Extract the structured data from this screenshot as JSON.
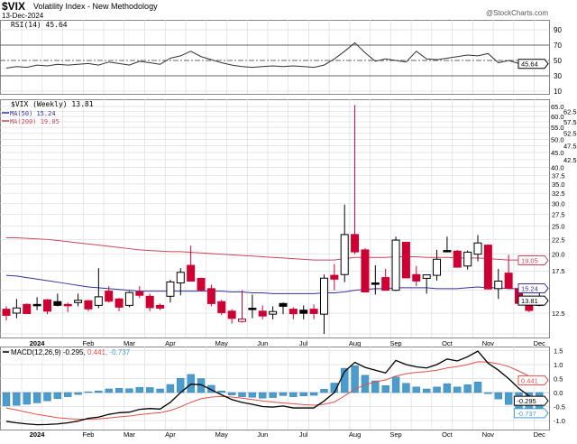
{
  "header": {
    "symbol": "$VIX",
    "name": "Volatility Index - New Methodology",
    "date": "13-Dec-2024",
    "watermark": "@StockCharts.com"
  },
  "colors": {
    "down": "#cc0033",
    "up_fill": "#ffffff",
    "candle_outline": "#000000",
    "ma50": "#33339a",
    "ma200": "#c8475c",
    "rsi": "#333333",
    "macd": "#000000",
    "signal": "#e0504a",
    "histogram": "#4a9ccc",
    "grid": "#dcdcdc"
  },
  "chart_data": [
    {
      "panel": "rsi",
      "type": "line",
      "legend": "RSI(14) 45.64",
      "ylim": [
        10,
        90
      ],
      "ticks": [
        "90",
        "70",
        "50",
        "30",
        "10"
      ],
      "reference_lines": [
        30,
        50,
        70
      ],
      "last_value_tag": "45.64",
      "values": [
        40,
        42,
        41,
        44,
        43,
        45,
        44,
        45,
        46,
        44,
        48,
        46,
        44,
        49,
        47,
        45,
        53,
        56,
        62,
        55,
        51,
        47,
        44,
        42,
        41,
        42,
        43,
        42,
        43,
        42,
        41,
        44,
        52,
        62,
        73,
        60,
        49,
        52,
        50,
        48,
        62,
        52,
        51,
        53,
        55,
        57,
        56,
        59,
        47,
        50,
        46,
        44,
        45.64
      ]
    },
    {
      "panel": "price",
      "type": "candlestick",
      "scale": "log",
      "legend": "$VIX (Weekly) 13.81",
      "ylim": [
        10.5,
        66
      ],
      "ticks": [
        "12.5",
        "17.5",
        "20.0",
        "22.5",
        "25.0",
        "27.5",
        "30.0",
        "32.5",
        "35.0",
        "37.5",
        "40.0",
        "42.5",
        "45.0",
        "47.5",
        "50.0",
        "52.5",
        "55.0",
        "57.5",
        "60.0",
        "62.5",
        "65.0"
      ],
      "last_value_tag": "13.81",
      "ohlc": [
        [
          12.9,
          13.2,
          11.8,
          12.28
        ],
        [
          12.5,
          14.0,
          12.0,
          13.03
        ],
        [
          13.4,
          13.5,
          12.4,
          12.45
        ],
        [
          13.4,
          14.2,
          12.8,
          13.35
        ],
        [
          13.9,
          14.0,
          12.4,
          12.7
        ],
        [
          13.7,
          14.6,
          13.2,
          13.3
        ],
        [
          13.4,
          13.6,
          12.6,
          13.26
        ],
        [
          13.6,
          14.6,
          13.2,
          13.85
        ],
        [
          13.8,
          13.9,
          12.7,
          12.93
        ],
        [
          13.3,
          17.9,
          13.0,
          14.24
        ],
        [
          14.9,
          15.5,
          13.6,
          13.75
        ],
        [
          14.0,
          14.1,
          12.7,
          13.11
        ],
        [
          13.3,
          14.9,
          13.1,
          14.74
        ],
        [
          14.8,
          15.5,
          14.1,
          14.41
        ],
        [
          14.3,
          14.6,
          12.7,
          13.06
        ],
        [
          13.3,
          13.5,
          12.8,
          13.01
        ],
        [
          14.3,
          16.3,
          13.6,
          16.03
        ],
        [
          15.9,
          17.9,
          14.4,
          17.31
        ],
        [
          18.3,
          21.4,
          16.1,
          16.14
        ],
        [
          16.5,
          16.6,
          14.9,
          15.03
        ],
        [
          15.2,
          15.7,
          13.2,
          13.49
        ],
        [
          13.7,
          13.9,
          12.3,
          12.55
        ],
        [
          12.7,
          12.9,
          11.5,
          11.99
        ],
        [
          11.7,
          15.0,
          11.6,
          11.93
        ],
        [
          13.0,
          14.5,
          12.0,
          12.92
        ],
        [
          12.7,
          13.3,
          11.9,
          12.22
        ],
        [
          12.4,
          13.2,
          11.9,
          12.66
        ],
        [
          13.5,
          13.6,
          12.4,
          13.2
        ],
        [
          12.9,
          13.1,
          11.9,
          12.44
        ],
        [
          12.8,
          13.3,
          11.9,
          12.48
        ],
        [
          12.9,
          13.4,
          11.9,
          12.46
        ],
        [
          12.4,
          17.0,
          10.6,
          16.52
        ],
        [
          16.9,
          18.5,
          15.0,
          16.39
        ],
        [
          17.0,
          29.7,
          16.0,
          23.39
        ],
        [
          23.4,
          65.7,
          20.0,
          20.37
        ],
        [
          20.7,
          21.0,
          14.8,
          14.8
        ],
        [
          15.9,
          18.3,
          14.5,
          15.86
        ],
        [
          16.6,
          17.8,
          15.0,
          15.0
        ],
        [
          15.0,
          23.0,
          14.9,
          22.38
        ],
        [
          22.0,
          22.0,
          16.6,
          16.56
        ],
        [
          17.0,
          18.2,
          15.5,
          16.15
        ],
        [
          16.5,
          16.9,
          14.6,
          16.96
        ],
        [
          16.9,
          20.7,
          16.2,
          19.21
        ],
        [
          20.6,
          23.0,
          20.3,
          20.46
        ],
        [
          20.5,
          20.7,
          18.0,
          18.03
        ],
        [
          18.2,
          20.6,
          17.7,
          20.33
        ],
        [
          20.0,
          23.3,
          18.9,
          21.88
        ],
        [
          21.5,
          21.6,
          15.1,
          15.16
        ],
        [
          15.2,
          17.8,
          14.0,
          16.14
        ],
        [
          17.2,
          19.9,
          15.2,
          15.24
        ],
        [
          15.2,
          15.7,
          13.4,
          13.51
        ],
        [
          13.4,
          13.5,
          12.6,
          12.77
        ],
        [
          13.3,
          14.7,
          13.2,
          13.81
        ]
      ],
      "overlays": [
        {
          "name": "MA(50) 15.24",
          "tag": "15.24",
          "values": [
            16.9,
            16.8,
            16.6,
            16.4,
            16.2,
            16.0,
            15.8,
            15.6,
            15.4,
            15.3,
            15.2,
            15.1,
            15.0,
            14.9,
            14.9,
            14.9,
            14.9,
            14.9,
            14.9,
            14.9,
            14.9,
            14.9,
            14.8,
            14.8,
            14.7,
            14.7,
            14.6,
            14.6,
            14.6,
            14.6,
            14.6,
            14.7,
            14.7,
            14.8,
            15.0,
            15.1,
            15.2,
            15.2,
            15.3,
            15.3,
            15.3,
            15.3,
            15.2,
            15.2,
            15.2,
            15.3,
            15.4,
            15.3,
            15.3,
            15.2,
            15.2,
            15.24,
            15.24
          ]
        },
        {
          "name": "MA(200) 19.05",
          "tag": "19.05",
          "values": [
            22.8,
            22.8,
            22.7,
            22.6,
            22.5,
            22.3,
            22.1,
            21.9,
            21.7,
            21.5,
            21.3,
            21.1,
            20.9,
            20.7,
            20.6,
            20.5,
            20.4,
            20.4,
            20.3,
            20.2,
            20.1,
            20.0,
            19.9,
            19.8,
            19.7,
            19.6,
            19.5,
            19.4,
            19.3,
            19.2,
            19.1,
            19.1,
            19.1,
            19.3,
            19.5,
            19.5,
            19.5,
            19.5,
            19.6,
            19.6,
            19.6,
            19.5,
            19.5,
            19.5,
            19.4,
            19.4,
            19.4,
            19.3,
            19.2,
            19.1,
            19.1,
            19.05,
            19.05
          ]
        }
      ]
    },
    {
      "panel": "macd",
      "type": "line+bar",
      "legend": {
        "prefix": "MACD(12,26,9)",
        "macd": "-0.295,",
        "signal": "0.441,",
        "hist": "-0.737"
      },
      "ylim": [
        -1.2,
        1.6
      ],
      "ticks": [
        "1.5",
        "1.0",
        "0.5",
        "0.0",
        "-0.5",
        "-1.0"
      ],
      "tags": {
        "macd": "-0.295",
        "signal": "0.441",
        "hist": "-0.737"
      },
      "macd": [
        -1.03,
        -1.08,
        -1.12,
        -1.15,
        -1.14,
        -1.12,
        -1.08,
        -1.02,
        -0.92,
        -0.88,
        -0.78,
        -0.72,
        -0.7,
        -0.6,
        -0.57,
        -0.59,
        -0.35,
        0.0,
        0.3,
        0.28,
        0.1,
        -0.08,
        -0.25,
        -0.35,
        -0.42,
        -0.5,
        -0.52,
        -0.48,
        -0.55,
        -0.55,
        -0.55,
        -0.3,
        0.0,
        0.75,
        1.08,
        0.9,
        0.8,
        0.7,
        1.15,
        1.0,
        0.92,
        0.88,
        1.0,
        1.2,
        1.13,
        1.28,
        1.48,
        1.05,
        0.8,
        0.5,
        0.15,
        -0.12,
        -0.295
      ],
      "signal": [
        -0.55,
        -0.62,
        -0.7,
        -0.78,
        -0.84,
        -0.9,
        -0.93,
        -0.95,
        -0.95,
        -0.94,
        -0.91,
        -0.87,
        -0.84,
        -0.79,
        -0.75,
        -0.72,
        -0.64,
        -0.51,
        -0.35,
        -0.22,
        -0.16,
        -0.14,
        -0.16,
        -0.2,
        -0.25,
        -0.3,
        -0.34,
        -0.37,
        -0.4,
        -0.43,
        -0.45,
        -0.42,
        -0.34,
        -0.12,
        0.12,
        0.28,
        0.38,
        0.45,
        0.59,
        0.67,
        0.72,
        0.75,
        0.8,
        0.88,
        0.93,
        1.0,
        1.1,
        1.09,
        1.03,
        0.93,
        0.77,
        0.59,
        0.441
      ],
      "histogram": [
        -0.48,
        -0.46,
        -0.42,
        -0.37,
        -0.3,
        -0.22,
        -0.15,
        -0.07,
        0.03,
        0.06,
        0.13,
        0.15,
        0.14,
        0.19,
        0.18,
        0.13,
        0.29,
        0.51,
        0.65,
        0.5,
        0.26,
        0.06,
        -0.09,
        -0.15,
        -0.17,
        -0.2,
        -0.18,
        -0.11,
        -0.15,
        -0.12,
        -0.1,
        0.12,
        0.34,
        0.87,
        0.96,
        0.62,
        0.42,
        0.25,
        0.56,
        0.33,
        0.2,
        0.13,
        0.2,
        0.32,
        0.2,
        0.28,
        0.38,
        -0.04,
        -0.23,
        -0.43,
        -0.62,
        -0.71,
        -0.737
      ]
    }
  ],
  "x_axis": {
    "labels": [
      {
        "text": "2024",
        "week": 3,
        "bold": true
      },
      {
        "text": "Feb",
        "week": 8
      },
      {
        "text": "Mar",
        "week": 12
      },
      {
        "text": "Apr",
        "week": 16
      },
      {
        "text": "May",
        "week": 21
      },
      {
        "text": "Jun",
        "week": 25
      },
      {
        "text": "Jul",
        "week": 29
      },
      {
        "text": "Aug",
        "week": 34
      },
      {
        "text": "Sep",
        "week": 38
      },
      {
        "text": "Oct",
        "week": 43
      },
      {
        "text": "Nov",
        "week": 47
      },
      {
        "text": "Dec",
        "week": 52
      }
    ]
  }
}
